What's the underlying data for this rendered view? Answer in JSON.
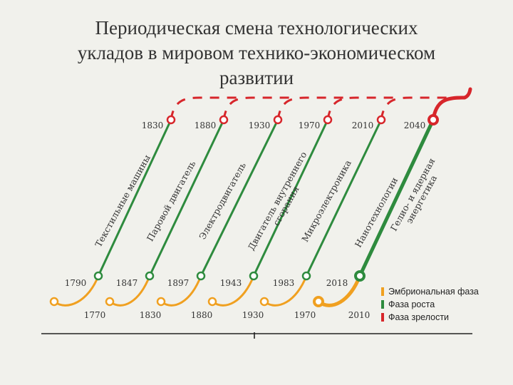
{
  "title": {
    "line1": "Периодическая смена технологических",
    "line2": "укладов в мировом технико-экономическом",
    "line3": "развитии"
  },
  "top_years": [
    "1830",
    "1880",
    "1930",
    "1970",
    "2010",
    "2040"
  ],
  "mid_years": [
    "1790",
    "1847",
    "1897",
    "1943",
    "1983",
    "2018"
  ],
  "bottom_years": [
    "1770",
    "1830",
    "1880",
    "1930",
    "1970",
    "2010"
  ],
  "labels": [
    {
      "line1": "Текстильные машины",
      "line2": ""
    },
    {
      "line1": "Паровой двигатель",
      "line2": ""
    },
    {
      "line1": "Электродвигатель",
      "line2": ""
    },
    {
      "line1": "Двигатель внутреннего",
      "line2": "сгорания"
    },
    {
      "line1": "Микроэлектроника",
      "line2": ""
    },
    {
      "line1": "Нанотехнологии",
      "line2": ""
    }
  ],
  "extra_label": {
    "line1": "Гелио- и ядерная",
    "line2": "энергетика"
  },
  "legend": [
    {
      "label": "Эмбриональная фаза",
      "color": "#f0a020"
    },
    {
      "label": "Фаза роста",
      "color": "#2e8b3e"
    },
    {
      "label": "Фаза зрелости",
      "color": "#d7262b"
    }
  ],
  "colors": {
    "embryo": "#f0a020",
    "growth": "#2e8b3e",
    "maturity": "#d7262b",
    "label_red": "#d7262b"
  }
}
